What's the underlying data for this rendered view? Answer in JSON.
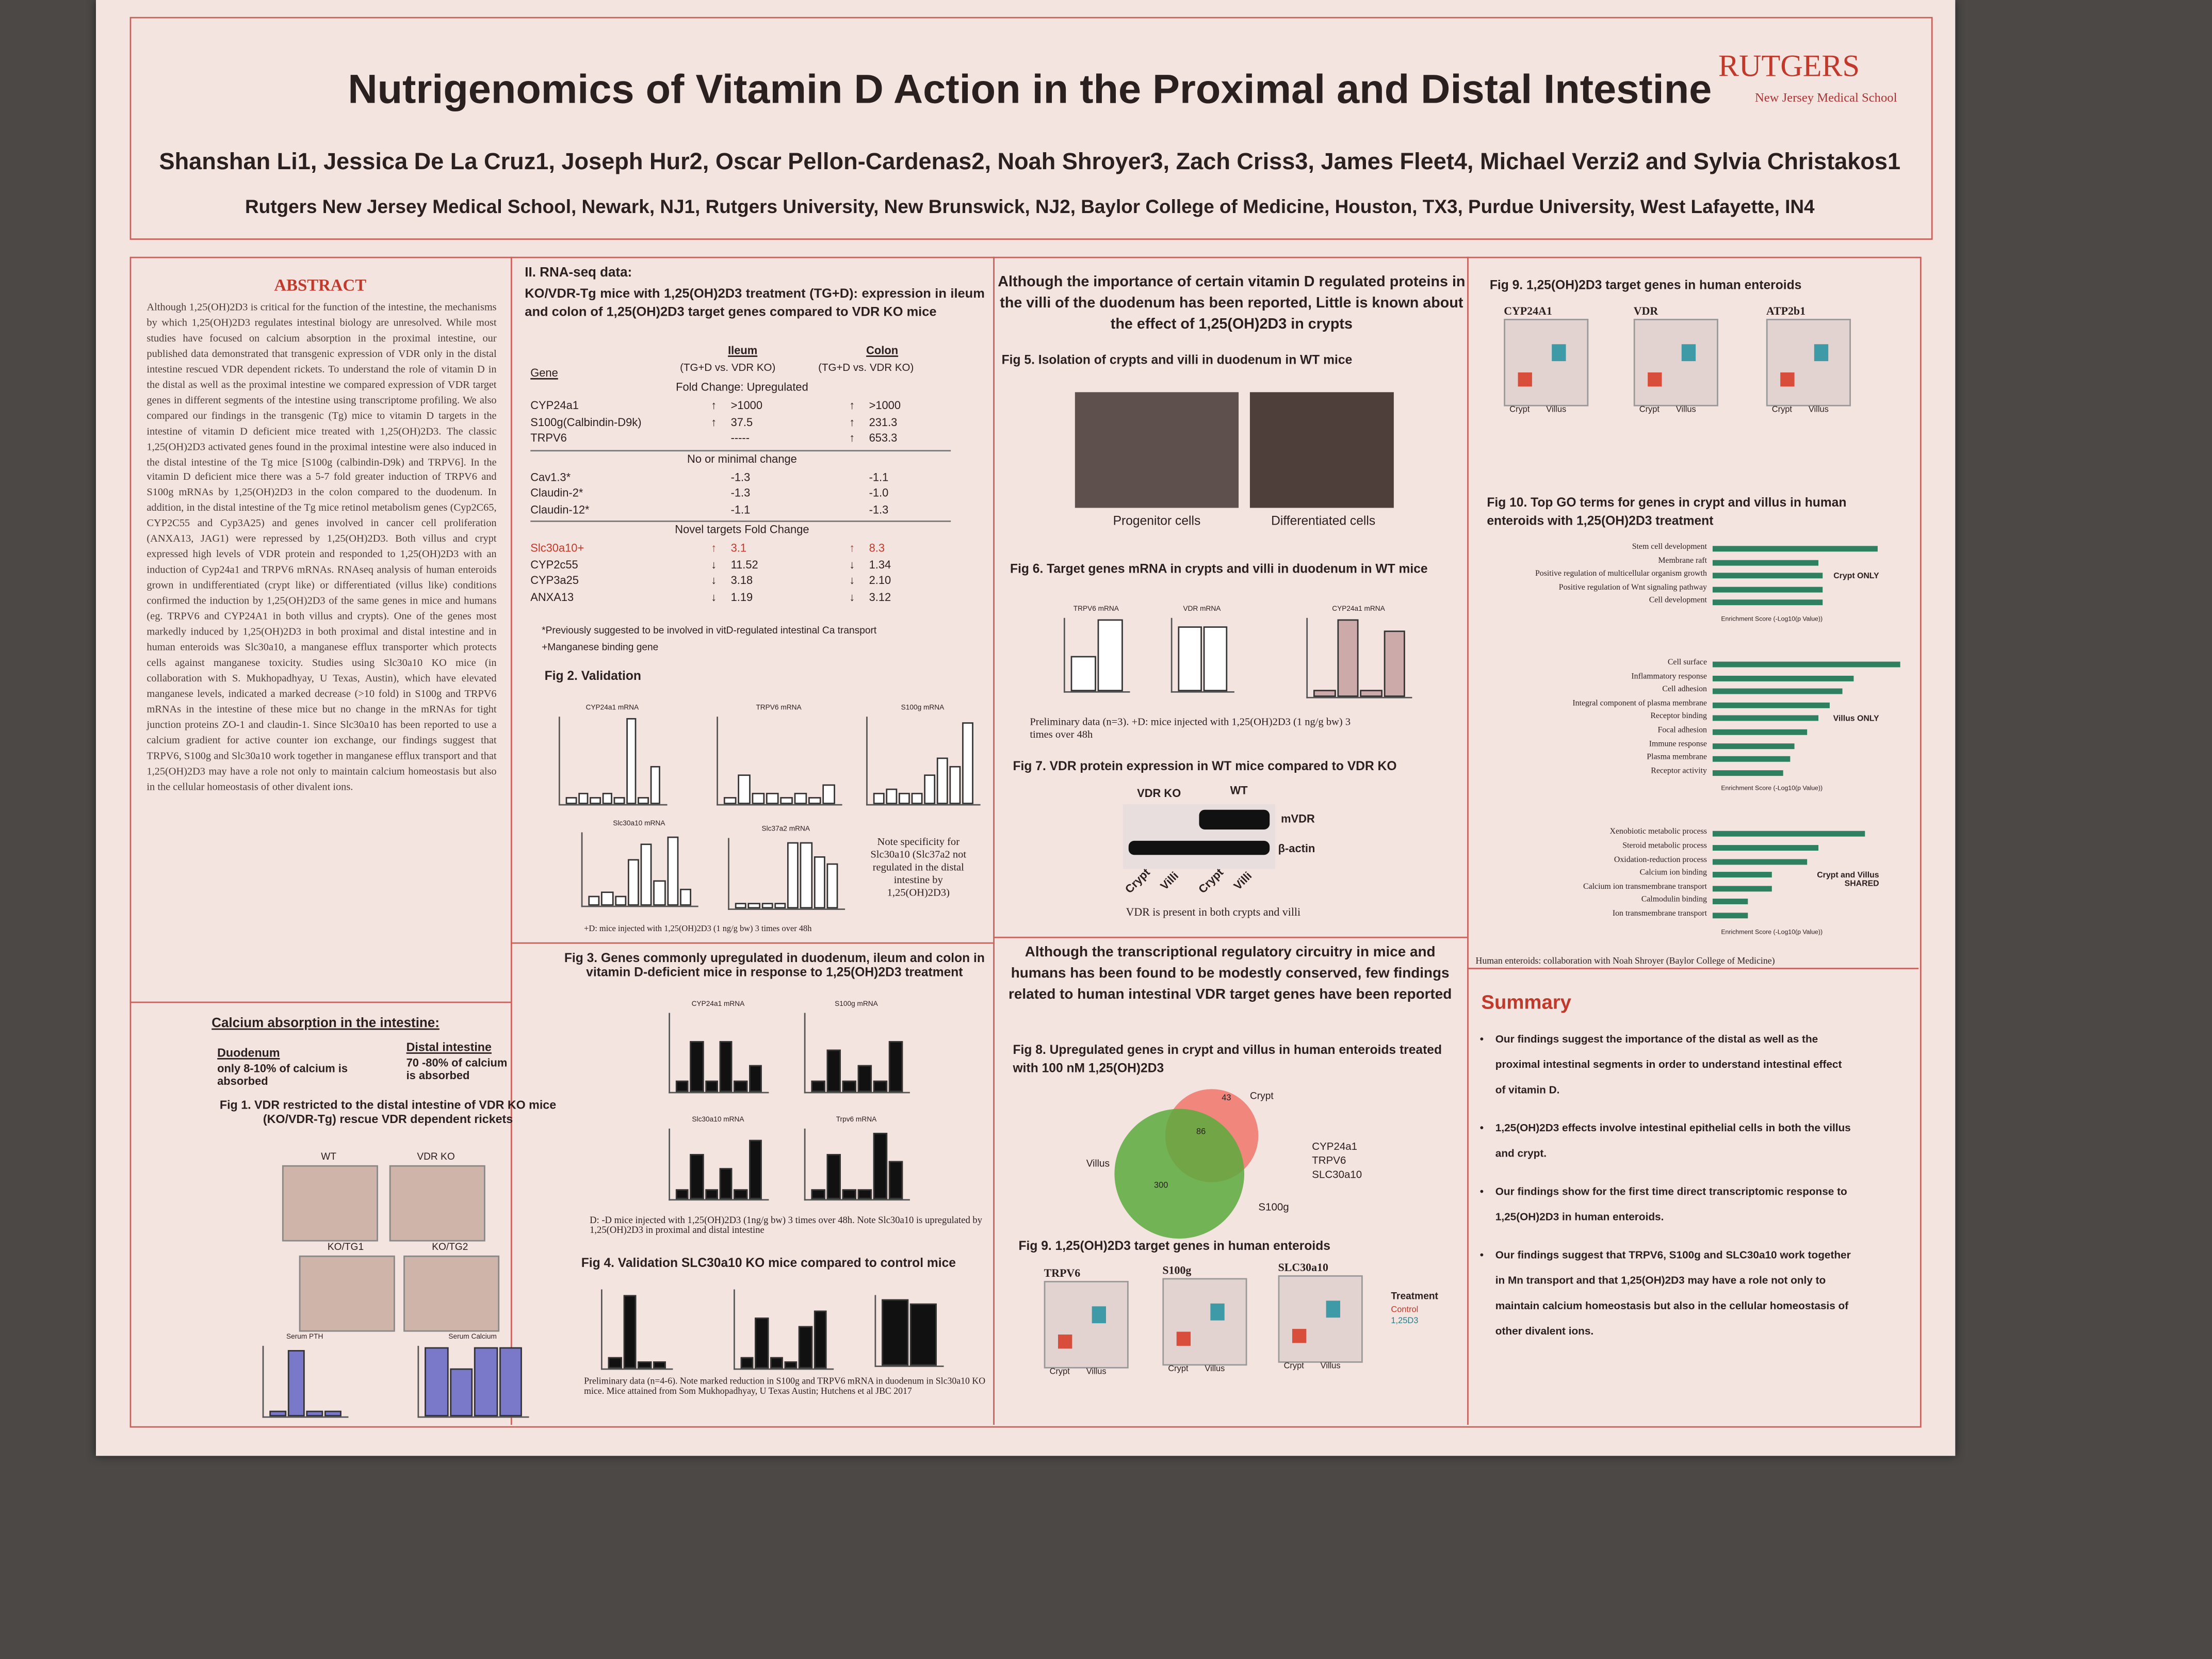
{
  "header": {
    "title": "Nutrigenomics of Vitamin D Action in the Proximal and Distal Intestine",
    "authors": "Shanshan Li1, Jessica De La Cruz1, Joseph Hur2, Oscar Pellon-Cardenas2, Noah Shroyer3, Zach Criss3, James Fleet4, Michael Verzi2 and Sylvia Christakos1",
    "affiliations": "Rutgers New Jersey Medical School, Newark, NJ1, Rutgers University, New Brunswick, NJ2, Baylor College of Medicine, Houston, TX3, Purdue University, West Lafayette, IN4",
    "logo": "RUTGERS",
    "school": "New Jersey Medical School"
  },
  "abstract": {
    "heading": "ABSTRACT",
    "text": "Although 1,25(OH)2D3 is critical for the function of the intestine, the mechanisms by which 1,25(OH)2D3 regulates intestinal biology are unresolved. While most studies have focused on calcium absorption in the proximal intestine, our published data demonstrated that transgenic expression of VDR only in the distal intestine rescued VDR dependent rickets. To understand the role of vitamin D in the distal as well as the proximal intestine we compared expression of VDR target genes in different segments of the intestine using transcriptome profiling. We also compared our findings in the transgenic (Tg) mice to vitamin D targets in the intestine of vitamin D deficient mice treated with 1,25(OH)2D3. The classic 1,25(OH)2D3 activated genes found in the proximal intestine were also induced in the distal intestine of the Tg mice [S100g (calbindin-D9k) and TRPV6]. In the vitamin D deficient mice there was a 5-7 fold greater induction of TRPV6 and S100g mRNAs by 1,25(OH)2D3 in the colon compared to the duodenum. In addition, in the distal intestine of the Tg mice retinol metabolism genes (Cyp2C65, CYP2C55 and Cyp3A25) and genes involved in cancer cell proliferation (ANXA13, JAG1) were repressed by 1,25(OH)2D3. Both villus and crypt expressed high levels of VDR protein and responded to 1,25(OH)2D3 with an induction of Cyp24a1 and TRPV6 mRNAs. RNAseq analysis of human enteroids grown in undifferentiated (crypt like) or differentiated (villus like) conditions confirmed the induction by 1,25(OH)2D3 of the same genes in mice and humans (eg. TRPV6 and CYP24A1 in both villus and crypts). One of the genes most markedly induced by 1,25(OH)2D3 in both proximal and distal intestine and in human enteroids was Slc30a10, a manganese efflux transporter which protects cells against manganese toxicity. Studies using Slc30a10 KO mice (in collaboration with S. Mukhopadhyay, U Texas, Austin), which have elevated manganese levels, indicated a marked decrease (>10 fold) in S100g and TRPV6 mRNAs in the intestine of these mice but no change in the mRNAs for tight junction proteins ZO-1 and claudin-1. Since Slc30a10 has been reported to use a calcium gradient for active counter ion exchange, our findings suggest that TRPV6, S100g and Slc30a10 work together in manganese efflux transport and that 1,25(OH)2D3 may have a role not only to maintain calcium homeostasis but also in the cellular homeostasis of other divalent ions."
  },
  "calcium": {
    "heading": "Calcium absorption in the intestine:",
    "duodenum_label": "Duodenum",
    "duodenum_text": "only 8-10% of calcium is absorbed",
    "distal_label": "Distal intestine",
    "distal_text": "70 -80% of calcium is absorbed",
    "fig1_caption": "Fig 1. VDR restricted to the distal intestine of VDR KO mice (KO/VDR-Tg) rescue VDR dependent rickets",
    "panels": [
      "WT",
      "VDR KO",
      "KO/TG1",
      "KO/TG2"
    ],
    "chart_titles": [
      "Serum PTH",
      "Serum Calcium"
    ]
  },
  "rnaseq": {
    "heading": "II. RNA-seq data:",
    "intro": "KO/VDR-Tg mice with 1,25(OH)2D3 treatment (TG+D): expression in ileum and colon of 1,25(OH)2D3 target genes compared to VDR KO mice",
    "columns": [
      "Gene",
      "Ileum",
      "Colon"
    ],
    "subheaders": [
      "(TG+D vs. VDR KO)",
      "(TG+D vs. VDR KO)"
    ],
    "sections": [
      {
        "heading": "Fold Change: Upregulated",
        "rows": [
          {
            "gene": "CYP24a1",
            "ileum_arrow": "↑",
            "ileum": ">1000",
            "colon_arrow": "↑",
            "colon": ">1000"
          },
          {
            "gene": "S100g(Calbindin-D9k)",
            "ileum_arrow": "↑",
            "ileum": "37.5",
            "colon_arrow": "↑",
            "colon": "231.3"
          },
          {
            "gene": "TRPV6",
            "ileum": "-----",
            "colon_arrow": "↑",
            "colon": "653.3"
          }
        ]
      },
      {
        "heading": "No or minimal change",
        "rows": [
          {
            "gene": "Cav1.3*",
            "ileum": "-1.3",
            "colon": "-1.1"
          },
          {
            "gene": "Claudin-2*",
            "ileum": "-1.3",
            "colon": "-1.0"
          },
          {
            "gene": "Claudin-12*",
            "ileum": "-1.1",
            "colon": "-1.3"
          }
        ]
      },
      {
        "heading": "Novel targets Fold Change",
        "rows": [
          {
            "gene": "Slc30a10+",
            "ileum_arrow": "↑",
            "ileum": "3.1",
            "colon_arrow": "↑",
            "colon": "8.3"
          },
          {
            "gene": "CYP2c55",
            "ileum_arrow": "↓",
            "ileum": "11.52",
            "colon_arrow": "↓",
            "colon": "1.34"
          },
          {
            "gene": "CYP3a25",
            "ileum_arrow": "↓",
            "ileum": "3.18",
            "colon_arrow": "↓",
            "colon": "2.10"
          },
          {
            "gene": "ANXA13",
            "ileum_arrow": "↓",
            "ileum": "1.19",
            "colon_arrow": "↓",
            "colon": "3.12"
          }
        ]
      }
    ],
    "footnote1": "*Previously suggested to be involved in vitD-regulated intestinal Ca transport",
    "footnote2": "+Manganese binding gene"
  },
  "fig2": {
    "caption": "Fig 2. Validation",
    "panel_titles": [
      "CYP24a1 mRNA",
      "TRPV6 mRNA",
      "S100g mRNA",
      "Slc30a10 mRNA",
      "Slc37a2 mRNA"
    ],
    "note": "Note specificity for Slc30a10 (Slc37a2 not regulated in the distal intestine by 1,25(OH)2D3)",
    "footnote": "+D: mice injected with 1,25(OH)2D3 (1 ng/g bw) 3 times over 48h"
  },
  "fig3": {
    "caption": "Fig 3. Genes commonly upregulated in duodenum, ileum and colon in vitamin D-deficient mice in response to 1,25(OH)2D3 treatment",
    "panel_titles": [
      "CYP24a1 mRNA",
      "S100g mRNA",
      "Slc30a10 mRNA",
      "Trpv6 mRNA"
    ],
    "footnote": "D: -D mice injected with 1,25(OH)2D3 (1ng/g bw) 3 times over 48h. Note Slc30a10 is upregulated by 1,25(OH)2D3 in proximal and distal intestine"
  },
  "fig4": {
    "caption": "Fig 4. Validation SLC30a10 KO mice compared to control mice",
    "footnote": "Preliminary data (n=4-6). Note marked reduction in S100g and TRPV6 mRNA in duodenum in Slc30a10 KO mice. Mice attained from Som Mukhopadhyay, U Texas Austin; Hutchens et al JBC 2017"
  },
  "col3": {
    "intro": "Although the importance of certain vitamin D regulated proteins in the villi of the duodenum has been reported, Little is known about the effect of 1,25(OH)2D3 in crypts",
    "fig5_caption": "Fig 5. Isolation of crypts and villi in duodenum in WT mice",
    "fig5_labels": [
      "Progenitor cells",
      "Differentiated cells"
    ],
    "fig6_caption": "Fig 6. Target genes mRNA in crypts and villi in duodenum in WT mice",
    "fig6_titles": [
      "TRPV6 mRNA",
      "VDR mRNA",
      "CYP24a1 mRNA"
    ],
    "fig6_note": "Preliminary data (n=3). +D: mice injected with 1,25(OH)2D3 (1 ng/g bw) 3 times over 48h",
    "fig7_caption": "Fig 7. VDR protein expression in WT mice compared to VDR KO",
    "fig7_groups": [
      "VDR KO",
      "WT"
    ],
    "fig7_bands": [
      "mVDR",
      "β-actin"
    ],
    "fig7_lanes": [
      "Crypt",
      "Villi",
      "Crypt",
      "Villi"
    ],
    "fig7_note": "VDR is present in both crypts and villi",
    "intro2": "Although the transcriptional regulatory circuitry in mice and humans has been found to be modestly conserved, few findings related to human intestinal VDR target genes have been reported",
    "fig8_caption": "Fig 8. Upregulated genes in crypt and villus in human enteroids treated with 100 nM 1,25(OH)2D3",
    "venn_labels": [
      "Crypt",
      "Villus"
    ],
    "venn_counts": [
      "43",
      "86",
      "300"
    ],
    "venn_genes": [
      "CYP24a1",
      "TRPV6",
      "SLC30a10",
      "S100g"
    ],
    "fig9_caption": "Fig 9. 1,25(OH)2D3 target genes in human enteroids",
    "fig9_genes": [
      "TRPV6",
      "S100g",
      "SLC30a10"
    ],
    "legend_title": "Treatment",
    "legend_items": [
      "Control",
      "1,25D3"
    ],
    "x_labels": [
      "Crypt",
      "Villus"
    ]
  },
  "col4": {
    "fig9_caption": "Fig 9. 1,25(OH)2D3 target genes in human enteroids",
    "fig9_genes": [
      "CYP24A1",
      "VDR",
      "ATP2b1"
    ],
    "fig10_caption": "Fig 10. Top GO terms for genes in crypt and villus in human enteroids with 1,25(OH)2D3 treatment",
    "axis_label": "Enrichment Score (-Log10(p Value))",
    "xlim": [
      0,
      9
    ],
    "groups": [
      {
        "label": "Crypt ONLY",
        "terms": [
          "Stem cell development",
          "Membrane raft",
          "Positive regulation of multicellular organism growth",
          "Positive regulation of Wnt signaling pathway",
          "Cell development"
        ],
        "values": [
          7,
          4.5,
          4.7,
          4.7,
          4.7
        ]
      },
      {
        "label": "Villus ONLY",
        "terms": [
          "Cell surface",
          "Inflammatory response",
          "Cell adhesion",
          "Integral component of plasma membrane",
          "Receptor binding",
          "Focal adhesion",
          "Immune response",
          "Plasma membrane",
          "Receptor activity"
        ],
        "values": [
          8,
          6,
          5.5,
          5,
          4.5,
          4,
          3.5,
          3.3,
          3
        ]
      },
      {
        "label": "Crypt and Villus SHARED",
        "terms": [
          "Xenobiotic metabolic process",
          "Steroid metabolic process",
          "Oxidation-reduction process",
          "Calcium ion binding",
          "Calcium ion transmembrane transport",
          "Calmodulin binding",
          "Ion transmembrane transport"
        ],
        "values": [
          6.5,
          4.5,
          4,
          2.5,
          2.5,
          1.5,
          1.5
        ]
      }
    ],
    "credit": "Human enteroids: collaboration with Noah Shroyer (Baylor College of Medicine)"
  },
  "summary": {
    "heading": "Summary",
    "bullets": [
      "Our findings suggest the importance of the distal as well as the proximal intestinal segments in order to understand intestinal effect of vitamin D.",
      "1,25(OH)2D3 effects involve intestinal epithelial cells in both the villus and crypt.",
      "Our findings show for the first time direct transcriptomic response to 1,25(OH)2D3 in human enteroids.",
      "Our findings suggest that TRPV6, S100g and SLC30a10 work together in Mn transport and that 1,25(OH)2D3 may have a role not only to maintain calcium homeostasis but also in the cellular homeostasis of other divalent ions."
    ]
  }
}
